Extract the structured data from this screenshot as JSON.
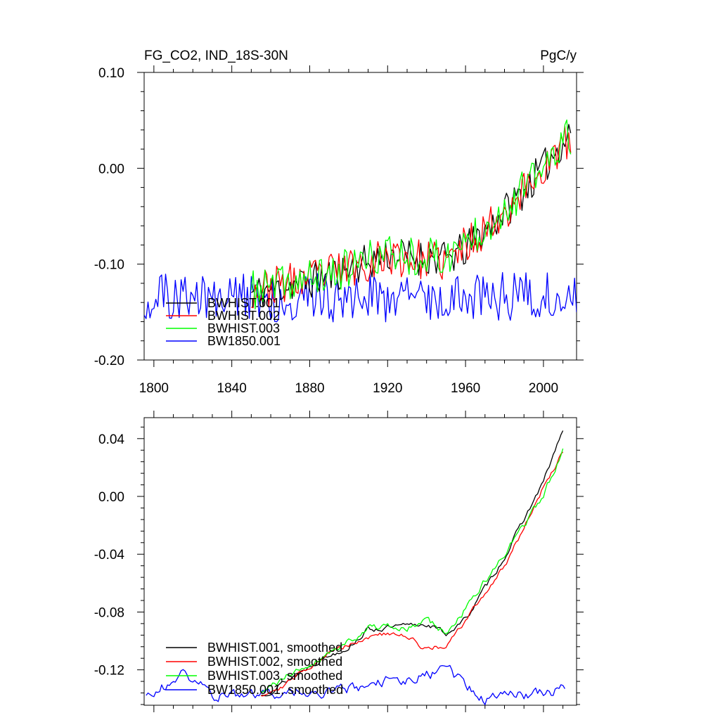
{
  "chart_data": [
    {
      "type": "line",
      "title": "FG_CO2, IND_18S-30N",
      "units": "PgC/y",
      "xlim": [
        1795,
        2017
      ],
      "ylim": [
        -0.2,
        0.1
      ],
      "xticks": [
        1800,
        1840,
        1880,
        1920,
        1960,
        2000
      ],
      "xtick_labels": [
        "1800",
        "1840",
        "1880",
        "1920",
        "1960",
        "2000"
      ],
      "yticks": [
        -0.2,
        -0.1,
        0.0,
        0.1
      ],
      "ytick_labels": [
        "-0.20",
        "-0.10",
        "0.00",
        "0.10"
      ],
      "legend_position": "lower-left",
      "series": [
        {
          "name": "BWHIST.001",
          "color": "#000000",
          "start": 1850,
          "end": 2014,
          "seed": 11,
          "knots": [
            [
              1850,
              -0.13
            ],
            [
              1880,
              -0.118
            ],
            [
              1900,
              -0.105
            ],
            [
              1920,
              -0.09
            ],
            [
              1950,
              -0.095
            ],
            [
              1960,
              -0.085
            ],
            [
              1980,
              -0.045
            ],
            [
              2000,
              0.0
            ],
            [
              2014,
              0.04
            ]
          ],
          "noise": 0.012
        },
        {
          "name": "BWHIST.002",
          "color": "#ff0000",
          "start": 1850,
          "end": 2014,
          "seed": 23,
          "knots": [
            [
              1850,
              -0.128
            ],
            [
              1880,
              -0.115
            ],
            [
              1900,
              -0.103
            ],
            [
              1920,
              -0.092
            ],
            [
              1950,
              -0.098
            ],
            [
              1960,
              -0.08
            ],
            [
              1980,
              -0.045
            ],
            [
              2000,
              0.0
            ],
            [
              2014,
              0.03
            ]
          ],
          "noise": 0.013
        },
        {
          "name": "BWHIST.003",
          "color": "#00ff00",
          "start": 1850,
          "end": 2014,
          "seed": 37,
          "knots": [
            [
              1850,
              -0.128
            ],
            [
              1880,
              -0.116
            ],
            [
              1900,
              -0.104
            ],
            [
              1920,
              -0.088
            ],
            [
              1950,
              -0.094
            ],
            [
              1960,
              -0.076
            ],
            [
              1980,
              -0.042
            ],
            [
              2000,
              0.0
            ],
            [
              2014,
              0.035
            ]
          ],
          "noise": 0.013
        },
        {
          "name": "BW1850.001",
          "color": "#0000ff",
          "start": 1795,
          "end": 2017,
          "seed": 51,
          "knots": [
            [
              1795,
              -0.135
            ],
            [
              1900,
              -0.135
            ],
            [
              2017,
              -0.133
            ]
          ],
          "noise": 0.016
        }
      ]
    },
    {
      "type": "line",
      "title": "",
      "xlim": [
        1795,
        2017
      ],
      "ylim": [
        -0.1445,
        0.0545
      ],
      "xticks": [
        1800,
        1840,
        1880,
        1920,
        1960,
        2000
      ],
      "yticks": [
        -0.12,
        -0.08,
        -0.04,
        0.0,
        0.04
      ],
      "ytick_labels": [
        "-0.12",
        "-0.08",
        "-0.04",
        "0.00",
        "0.04"
      ],
      "legend_position": "lower-left",
      "series": [
        {
          "name": "BWHIST.001, smoothed",
          "color": "#000000",
          "start": 1855,
          "end": 2010,
          "seed": 13,
          "knots": [
            [
              1855,
              -0.138
            ],
            [
              1870,
              -0.126
            ],
            [
              1885,
              -0.113
            ],
            [
              1900,
              -0.104
            ],
            [
              1910,
              -0.092
            ],
            [
              1930,
              -0.09
            ],
            [
              1940,
              -0.088
            ],
            [
              1950,
              -0.095
            ],
            [
              1960,
              -0.085
            ],
            [
              1980,
              -0.042
            ],
            [
              2000,
              0.01
            ],
            [
              2010,
              0.046
            ]
          ],
          "noise": 0.002
        },
        {
          "name": "BWHIST.002, smoothed",
          "color": "#ff0000",
          "start": 1855,
          "end": 2010,
          "seed": 29,
          "knots": [
            [
              1855,
              -0.137
            ],
            [
              1870,
              -0.128
            ],
            [
              1885,
              -0.112
            ],
            [
              1900,
              -0.102
            ],
            [
              1915,
              -0.095
            ],
            [
              1930,
              -0.097
            ],
            [
              1938,
              -0.104
            ],
            [
              1950,
              -0.105
            ],
            [
              1960,
              -0.086
            ],
            [
              1980,
              -0.048
            ],
            [
              2000,
              0.006
            ],
            [
              2010,
              0.031
            ]
          ],
          "noise": 0.002
        },
        {
          "name": "BWHIST.003, smoothed",
          "color": "#00ff00",
          "start": 1855,
          "end": 2010,
          "seed": 41,
          "knots": [
            [
              1855,
              -0.137
            ],
            [
              1870,
              -0.123
            ],
            [
              1885,
              -0.112
            ],
            [
              1900,
              -0.1
            ],
            [
              1910,
              -0.09
            ],
            [
              1930,
              -0.092
            ],
            [
              1940,
              -0.085
            ],
            [
              1950,
              -0.095
            ],
            [
              1960,
              -0.078
            ],
            [
              1980,
              -0.04
            ],
            [
              2000,
              0.0
            ],
            [
              2010,
              0.034
            ]
          ],
          "noise": 0.0025
        },
        {
          "name": "BW1850.001, smoothed",
          "color": "#0000ff",
          "start": 1796,
          "end": 2011,
          "seed": 59,
          "knots": [
            [
              1796,
              -0.137
            ],
            [
              1810,
              -0.128
            ],
            [
              1815,
              -0.12
            ],
            [
              1830,
              -0.138
            ],
            [
              1900,
              -0.133
            ],
            [
              1950,
              -0.12
            ],
            [
              1970,
              -0.14
            ],
            [
              2011,
              -0.134
            ]
          ],
          "noise": 0.004
        }
      ]
    }
  ]
}
